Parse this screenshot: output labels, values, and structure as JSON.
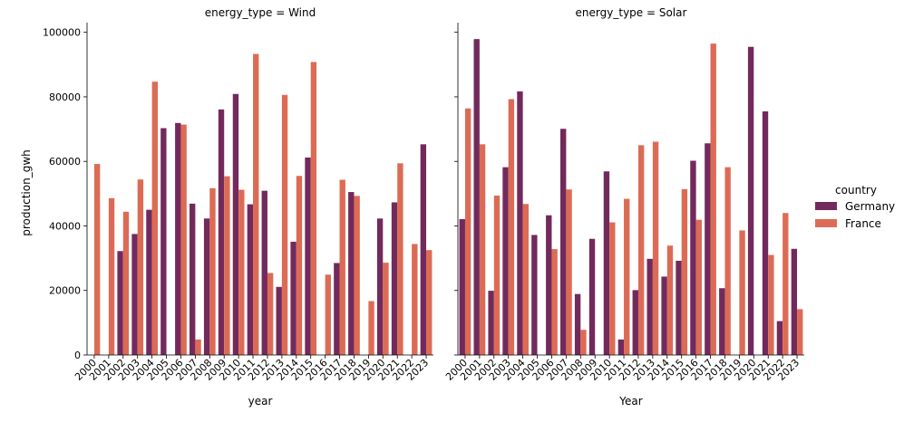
{
  "chart_data": {
    "type": "bar",
    "facet_label_prefix": "energy_type = ",
    "ylabel": "production_gwh",
    "ylim": [
      0,
      103000
    ],
    "yticks": [
      0,
      20000,
      40000,
      60000,
      80000,
      100000
    ],
    "ytick_labels": [
      "0",
      "20000",
      "40000",
      "60000",
      "80000",
      "100000"
    ],
    "categories": [
      "2000",
      "2001",
      "2002",
      "2003",
      "2004",
      "2005",
      "2006",
      "2007",
      "2008",
      "2009",
      "2010",
      "2011",
      "2012",
      "2013",
      "2014",
      "2015",
      "2016",
      "2017",
      "2018",
      "2019",
      "2020",
      "2021",
      "2022",
      "2023"
    ],
    "legend": {
      "title": "country",
      "placement": "right",
      "entries": [
        {
          "name": "Germany",
          "color": "#722a5c"
        },
        {
          "name": "France",
          "color": "#dc6b55"
        }
      ]
    },
    "facets": [
      {
        "title": "energy_type = Wind",
        "xlabel": "year",
        "series": [
          {
            "name": "Germany",
            "color": "#722a5c",
            "values": [
              0,
              0,
              32200,
              37500,
              45000,
              70300,
              71900,
              46900,
              42300,
              76100,
              80900,
              46700,
              50900,
              21100,
              35100,
              61200,
              0,
              28500,
              50500,
              0,
              42300,
              47300,
              0,
              65300
            ]
          },
          {
            "name": "France",
            "color": "#dc6b55",
            "values": [
              59200,
              48600,
              44400,
              54400,
              84700,
              0,
              71400,
              4800,
              51700,
              55400,
              51200,
              93300,
              25400,
              80600,
              55500,
              90800,
              24900,
              54300,
              49300,
              16700,
              28600,
              59400,
              34400,
              32500
            ]
          }
        ]
      },
      {
        "title": "energy_type = Solar",
        "xlabel": "Year",
        "series": [
          {
            "name": "Germany",
            "color": "#722a5c",
            "values": [
              42100,
              97900,
              19900,
              58200,
              81700,
              37200,
              43300,
              70100,
              18900,
              36000,
              56900,
              4800,
              20100,
              29800,
              24300,
              29200,
              60200,
              65600,
              20700,
              0,
              95500,
              75500,
              10500,
              32900
            ]
          },
          {
            "name": "France",
            "color": "#dc6b55",
            "values": [
              76400,
              65300,
              49400,
              79300,
              46800,
              0,
              32800,
              51300,
              7800,
              0,
              41100,
              48400,
              65000,
              66100,
              33900,
              51400,
              41900,
              96500,
              58200,
              38600,
              0,
              31000,
              44000,
              14200
            ]
          }
        ]
      }
    ]
  }
}
